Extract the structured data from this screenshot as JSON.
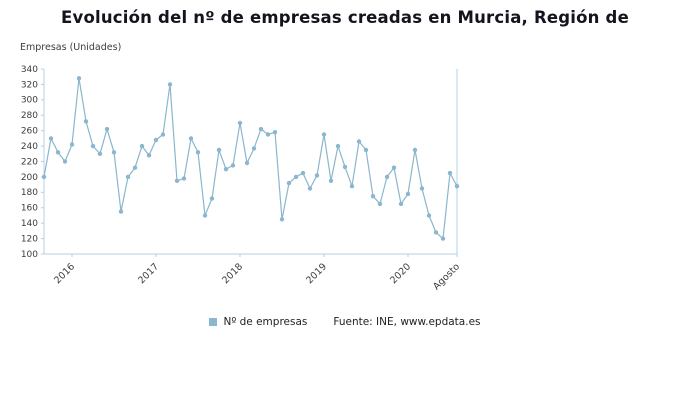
{
  "title": "Evolución del nº de empresas creadas en Murcia, Región de",
  "legend": {
    "label": "Nº de empresas",
    "source": "Fuente: INE, www.epdata.es",
    "marker_color": "#8ab6ce"
  },
  "chart_data": {
    "type": "line",
    "title": "Evolución del nº de empresas creadas en Murcia, Región de",
    "ylabel": "Empresas (Unidades)",
    "xlabel": "",
    "ylim": [
      100,
      340
    ],
    "ytick_step": 20,
    "ytick_labels": [
      "100",
      "120",
      "140",
      "160",
      "180",
      "200",
      "220",
      "240",
      "260",
      "280",
      "300",
      "320",
      "340"
    ],
    "x_labels": [
      {
        "label": "2016",
        "index": 4
      },
      {
        "label": "2017",
        "index": 16
      },
      {
        "label": "2018",
        "index": 28
      },
      {
        "label": "2019",
        "index": 40
      },
      {
        "label": "2020",
        "index": 52
      },
      {
        "label": "Agosto",
        "index": 59
      }
    ],
    "series_name": "Nº de empresas",
    "values": [
      200,
      250,
      232,
      220,
      242,
      328,
      272,
      240,
      230,
      262,
      232,
      155,
      200,
      212,
      240,
      228,
      248,
      255,
      320,
      195,
      198,
      250,
      232,
      150,
      172,
      235,
      210,
      215,
      270,
      218,
      237,
      262,
      255,
      258,
      145,
      192,
      200,
      205,
      185,
      202,
      255,
      195,
      240,
      213,
      188,
      246,
      235,
      175,
      165,
      200,
      212,
      165,
      178,
      235,
      185,
      150,
      128,
      120,
      205,
      188
    ],
    "legend_position": "bottom",
    "grid": false,
    "colors": {
      "line": "#8ab6ce",
      "axis": "#b3d1e4",
      "tick_text": "#3c3c3c",
      "title": "#14141e"
    }
  }
}
